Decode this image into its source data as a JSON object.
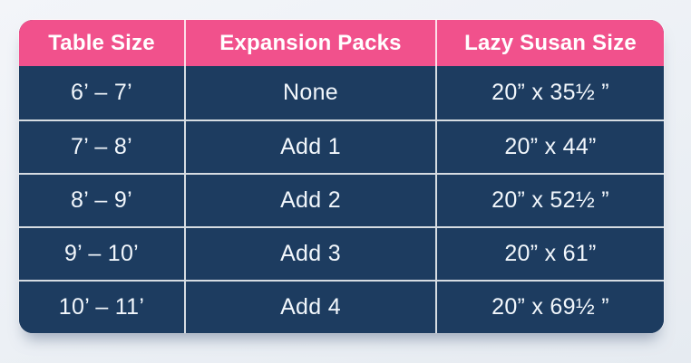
{
  "chart_data": {
    "type": "table",
    "columns": [
      "Table Size",
      "Expansion Packs",
      "Lazy Susan Size"
    ],
    "rows": [
      [
        "6’ – 7’",
        "None",
        "20” x 35½ ”"
      ],
      [
        "7’ – 8’",
        "Add 1",
        "20” x 44”"
      ],
      [
        "8’ – 9’",
        "Add 2",
        "20” x 52½ ”"
      ],
      [
        "9’ – 10’",
        "Add 3",
        "20” x 61”"
      ],
      [
        "10’ – 11’",
        "Add 4",
        "20” x 69½ ”"
      ]
    ],
    "layout": {
      "header_position": "top",
      "grid": "on",
      "rounded_corners": true
    }
  },
  "colors": {
    "header_bg": "#f1518c",
    "body_bg": "#1d3c60",
    "divider": "rgba(255,255,255,0.82)",
    "header_text": "#ffffff",
    "body_text": "#f2f7fc",
    "page_bg_top": "#f3f5f9",
    "page_bg_bottom": "#e6ebf1"
  }
}
